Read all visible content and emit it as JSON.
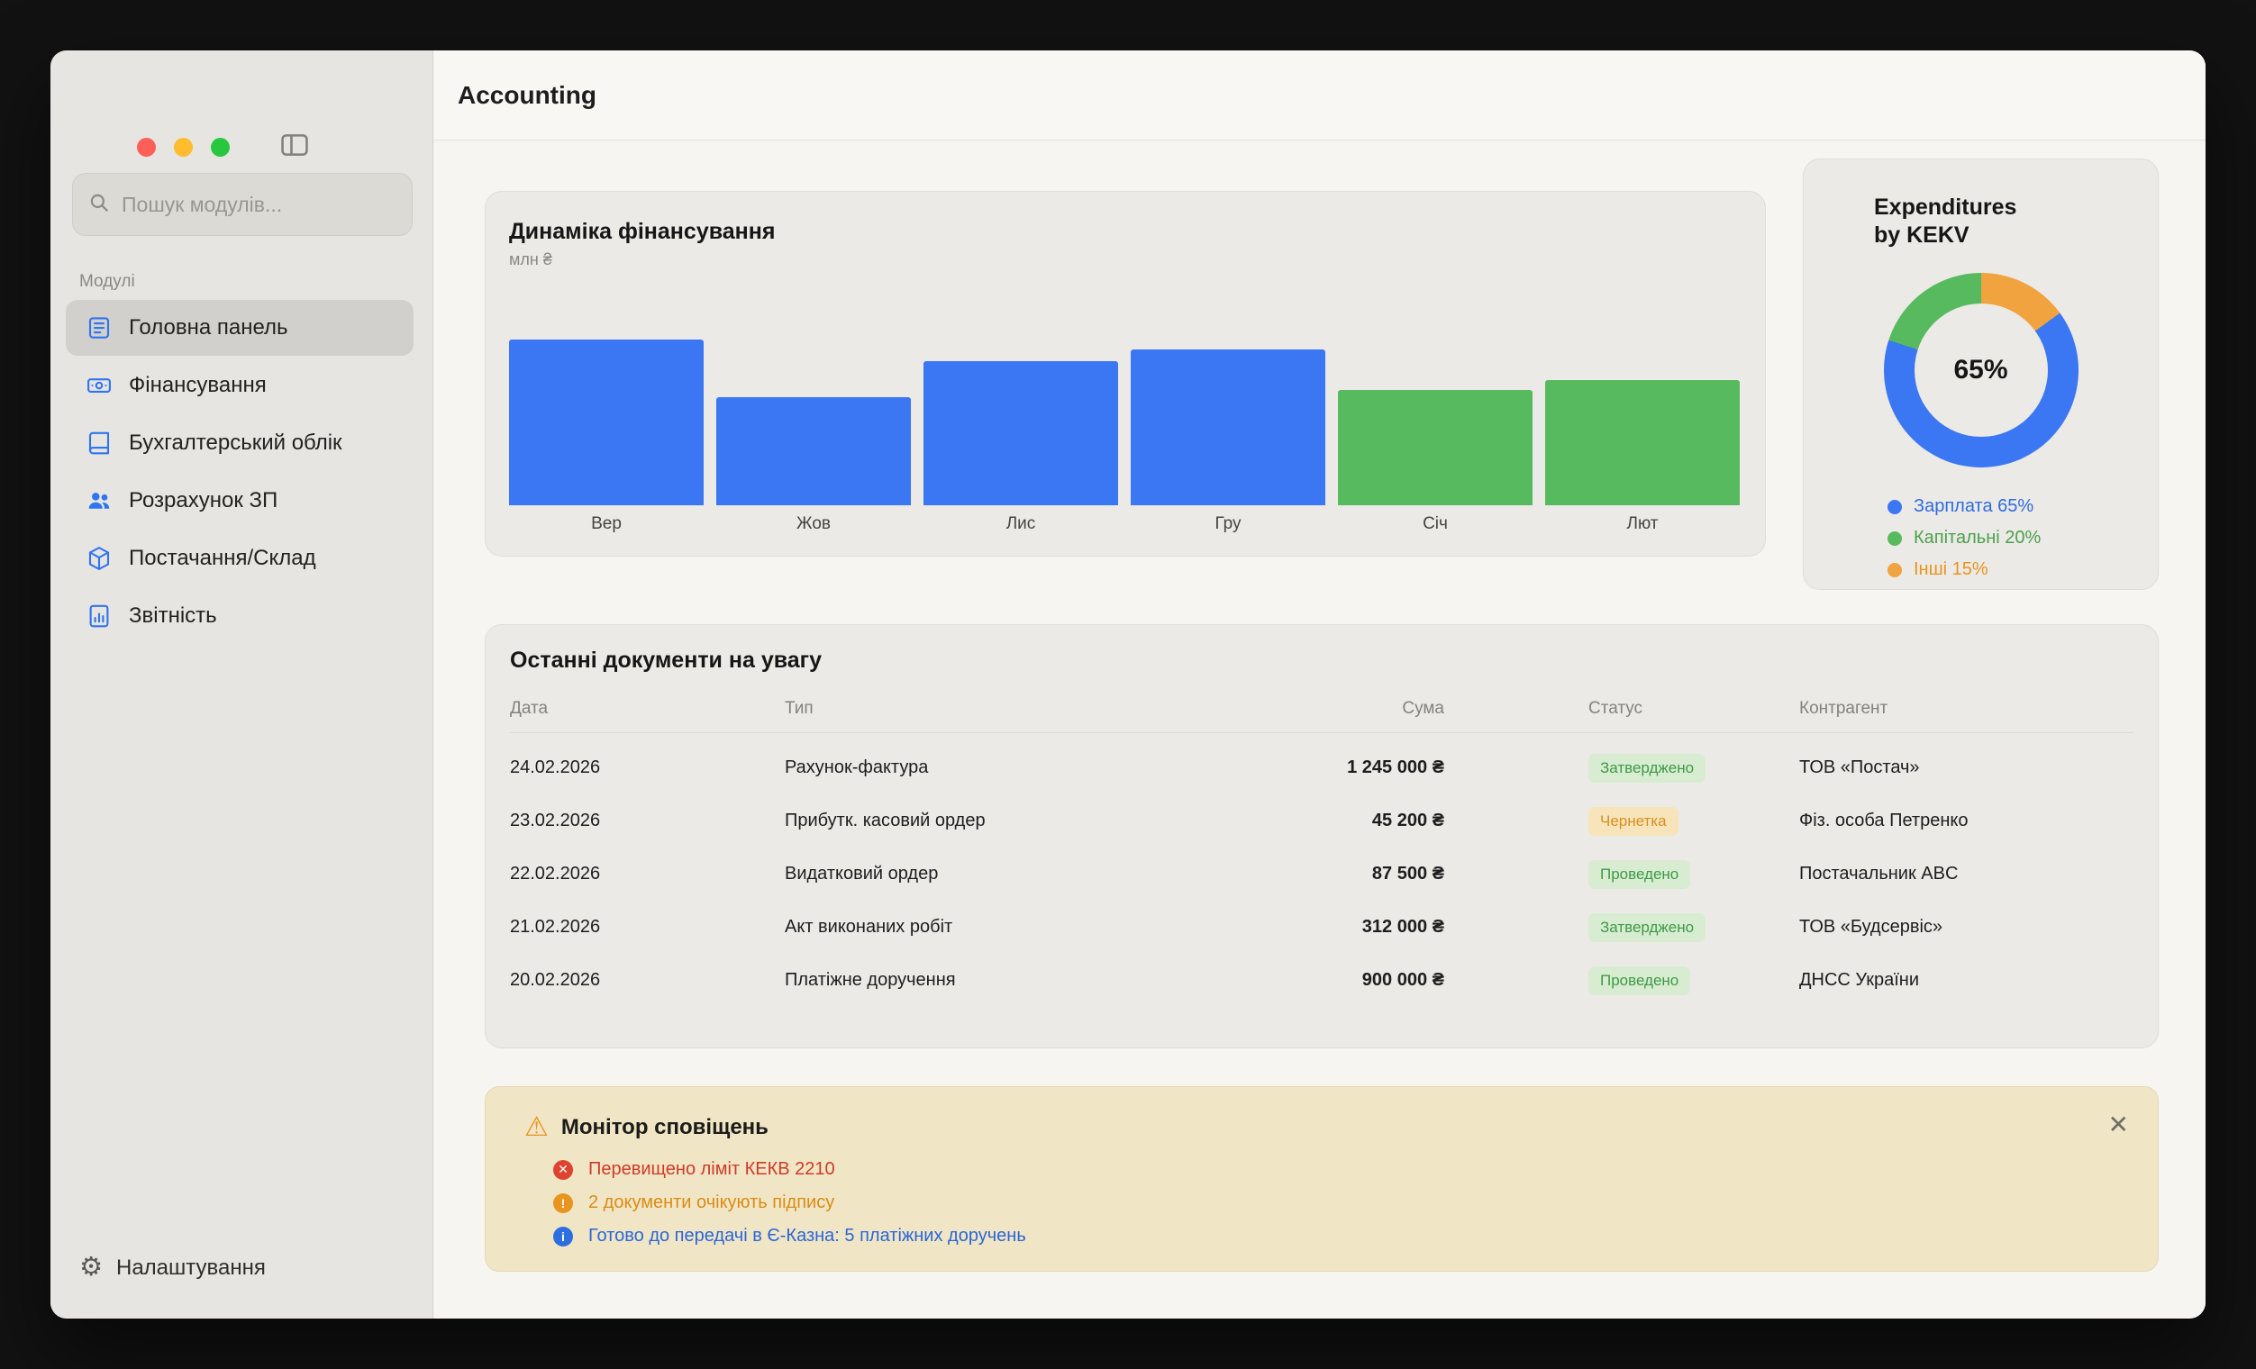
{
  "window": {
    "title": "Accounting"
  },
  "colors": {
    "accent_blue": "#3b77f3",
    "accent_green": "#58ba5f",
    "accent_orange": "#f0a33e",
    "traffic_red": "#ff5f57",
    "traffic_yellow": "#febc2e",
    "traffic_green": "#29c73f",
    "badge_green_bg": "#d8ecd2",
    "badge_green_text": "#3d9a45",
    "badge_orange_bg": "#f8e4ba",
    "badge_orange_text": "#d88f1c",
    "alert_bg": "#f0e6c5",
    "alert_error_text": "#d03a28",
    "alert_warning_text": "#db8b15",
    "alert_info_text": "#2a66d8"
  },
  "icons": {
    "warning": "⚠",
    "close": "✕",
    "gear": "⚙"
  },
  "sidebar": {
    "search_placeholder": "Пошук модулів...",
    "section_label": "Модулі",
    "items": [
      {
        "label": "Головна панель",
        "icon": "journal-icon",
        "selected": true
      },
      {
        "label": "Фінансування",
        "icon": "banknote-icon",
        "selected": false
      },
      {
        "label": "Бухгалтерський облік",
        "icon": "book-icon",
        "selected": false
      },
      {
        "label": "Розрахунок ЗП",
        "icon": "people-icon",
        "selected": false
      },
      {
        "label": "Постачання/Склад",
        "icon": "box-icon",
        "selected": false
      },
      {
        "label": "Звітність",
        "icon": "report-icon",
        "selected": false
      }
    ],
    "settings_label": "Налаштування"
  },
  "chart_data": [
    {
      "type": "bar",
      "title": "Динаміка фінансування",
      "ylabel": "млн ₴",
      "categories": [
        "Вер",
        "Жов",
        "Лис",
        "Гру",
        "Січ",
        "Лют"
      ],
      "values": [
        5.75,
        3.75,
        5.0,
        5.4,
        4.0,
        4.35
      ],
      "colors": [
        "#3b77f3",
        "#3b77f3",
        "#3b77f3",
        "#3b77f3",
        "#58ba5f",
        "#58ba5f"
      ],
      "ylim": [
        0,
        6
      ],
      "grid": false,
      "legend_position": "none"
    },
    {
      "type": "pie",
      "donut": true,
      "title_line1": "Expenditures",
      "title_line2": "by KEKV",
      "center_label": "65%",
      "start_angle_deg": 54,
      "slices": [
        {
          "label": "Зарплата",
          "value": 65,
          "color": "#3b77f3",
          "legend": "Зарплата 65%",
          "legend_color": "#2e6be0"
        },
        {
          "label": "Капітальні",
          "value": 20,
          "color": "#58ba5f",
          "legend": "Капітальні 20%",
          "legend_color": "#4ba04f"
        },
        {
          "label": "Інші",
          "value": 15,
          "color": "#f0a33e",
          "legend": "Інші 15%",
          "legend_color": "#e8941f"
        }
      ],
      "legend_position": "bottom"
    }
  ],
  "documents": {
    "title": "Останні документи на увагу",
    "columns": [
      "Дата",
      "Тип",
      "Сума",
      "Статус",
      "Контрагент"
    ],
    "rows": [
      {
        "date": "24.02.2026",
        "type": "Рахунок-фактура",
        "amount": "1 245 000 ₴",
        "status": "Затверджено",
        "status_color": "green",
        "party": "ТОВ «Постач»"
      },
      {
        "date": "23.02.2026",
        "type": "Прибутк. касовий ордер",
        "amount": "45 200 ₴",
        "status": "Чернетка",
        "status_color": "orange",
        "party": "Фіз. особа Петренко"
      },
      {
        "date": "22.02.2026",
        "type": "Видатковий ордер",
        "amount": "87 500 ₴",
        "status": "Проведено",
        "status_color": "green",
        "party": "Постачальник ABC"
      },
      {
        "date": "21.02.2026",
        "type": "Акт виконаних робіт",
        "amount": "312 000 ₴",
        "status": "Затверджено",
        "status_color": "green",
        "party": "ТОВ «Будсервіс»"
      },
      {
        "date": "20.02.2026",
        "type": "Платіжне доручення",
        "amount": "900 000 ₴",
        "status": "Проведено",
        "status_color": "green",
        "party": "ДНСС України"
      }
    ]
  },
  "alerts": {
    "title": "Монітор сповіщень",
    "items": [
      {
        "text": "Перевищено ліміт КЕКВ 2210",
        "kind": "error",
        "glyph": "✕"
      },
      {
        "text": "2 документи очікують підпису",
        "kind": "warning",
        "glyph": "!"
      },
      {
        "text": "Готово до передачі в Є-Казна: 5 платіжних доручень",
        "kind": "info",
        "glyph": "i"
      }
    ]
  }
}
